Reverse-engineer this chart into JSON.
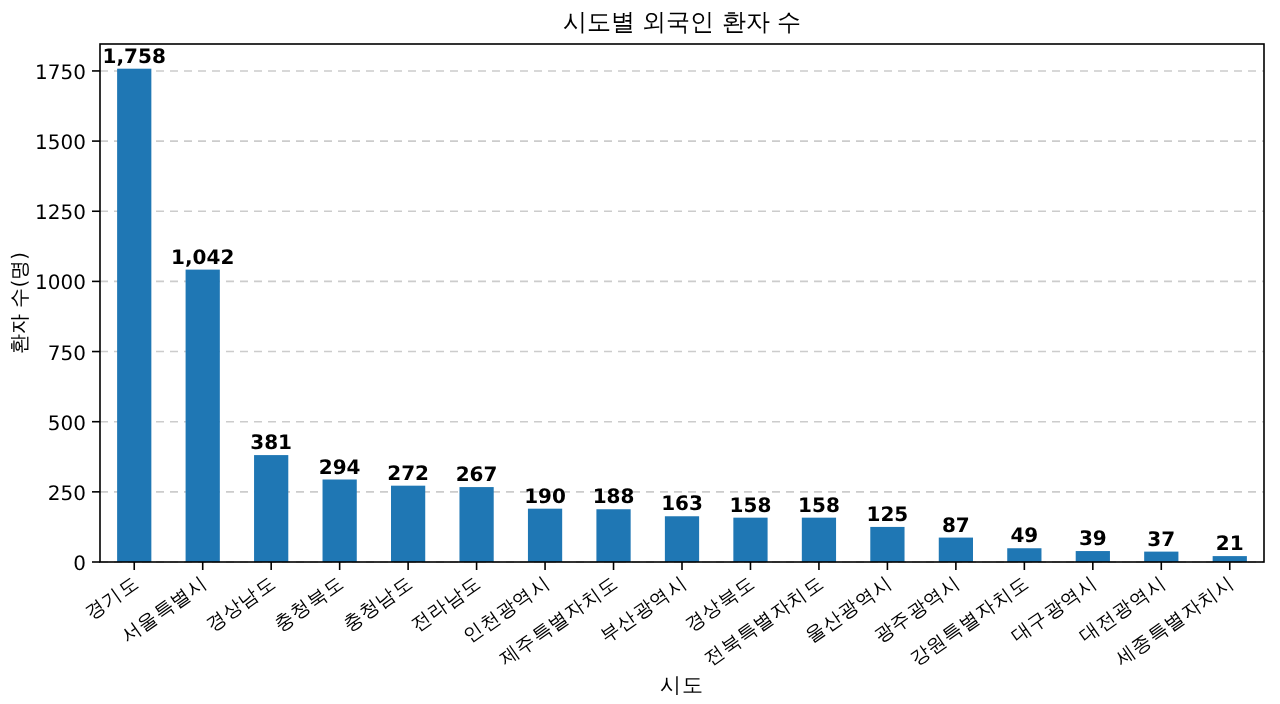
{
  "chart_data": {
    "type": "bar",
    "title": "시도별 외국인 환자 수",
    "xlabel": "시도",
    "ylabel": "환자 수(명)",
    "categories": [
      "경기도",
      "서울특별시",
      "경상남도",
      "충청북도",
      "충청남도",
      "전라남도",
      "인천광역시",
      "제주특별자치도",
      "부산광역시",
      "경상북도",
      "전북특별자치도",
      "울산광역시",
      "광주광역시",
      "강원특별자치도",
      "대구광역시",
      "대전광역시",
      "세종특별자치시"
    ],
    "values": [
      1758,
      1042,
      381,
      294,
      272,
      267,
      190,
      188,
      163,
      158,
      158,
      125,
      87,
      49,
      39,
      37,
      21
    ],
    "value_labels": [
      "1,758",
      "1,042",
      "381",
      "294",
      "272",
      "267",
      "190",
      "188",
      "163",
      "158",
      "158",
      "125",
      "87",
      "49",
      "39",
      "37",
      "21"
    ],
    "color": "#1f77b4",
    "ylim": [
      0,
      1846
    ],
    "yticks": [
      0,
      250,
      500,
      750,
      1000,
      1250,
      1500,
      1750
    ],
    "grid": "y"
  }
}
